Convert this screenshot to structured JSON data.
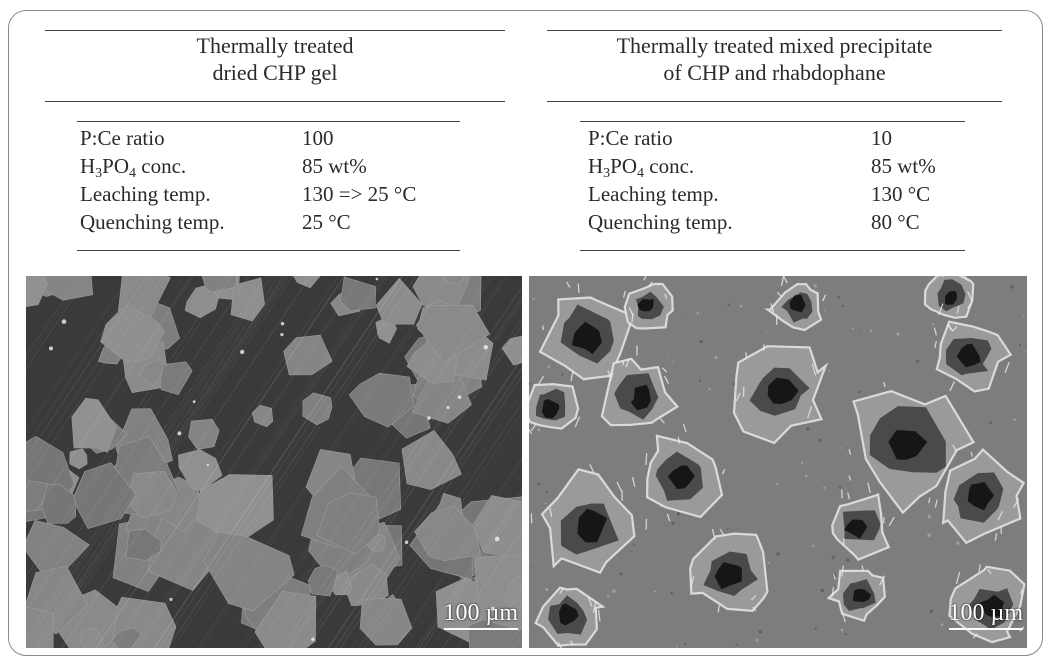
{
  "left": {
    "title_line1": "Thermally treated",
    "title_line2": "dried CHP gel",
    "params": [
      {
        "key": "P:Ce ratio",
        "value": "100"
      },
      {
        "key_prefix": "H",
        "key_sub1": "3",
        "key_mid": "PO",
        "key_sub2": "4",
        "key_suffix": " conc.",
        "value": "85 wt%"
      },
      {
        "key": "Leaching temp.",
        "value": "130 => 25 °C"
      },
      {
        "key": "Quenching temp.",
        "value": "25 °C"
      }
    ],
    "scale_bar": "100 µm"
  },
  "right": {
    "title_line1": "Thermally treated mixed precipitate",
    "title_line2": "of CHP and rhabdophane",
    "params": [
      {
        "key": "P:Ce ratio",
        "value": "10"
      },
      {
        "key_prefix": "H",
        "key_sub1": "3",
        "key_mid": "PO",
        "key_sub2": "4",
        "key_suffix": " conc.",
        "value": "85 wt%"
      },
      {
        "key": "Leaching temp.",
        "value": "130 °C"
      },
      {
        "key": "Quenching temp.",
        "value": "80 °C"
      }
    ],
    "scale_bar": "100 µm"
  },
  "colors": {
    "left_matrix": "#3a3a3a",
    "left_crystal": "#8a8a8a",
    "right_matrix": "#7d7d7d",
    "right_pit": "#161616",
    "right_edge": "#e8e8e8"
  }
}
